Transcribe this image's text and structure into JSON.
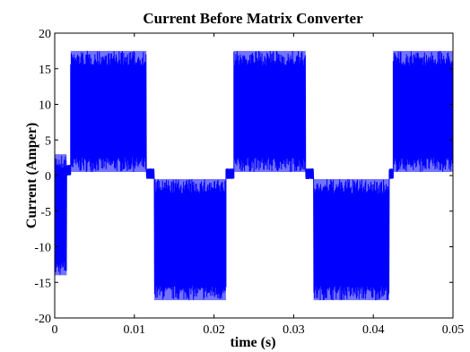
{
  "chart_data": {
    "type": "line",
    "title": "Current Before Matrix Converter",
    "xlabel": "time (s)",
    "ylabel": "Current (Amper)",
    "xlim": [
      0,
      0.05
    ],
    "ylim": [
      -20,
      20
    ],
    "x_ticks": [
      0,
      0.01,
      0.02,
      0.03,
      0.04,
      0.05
    ],
    "x_tick_labels": [
      "0",
      "0.01",
      "0.02",
      "0.03",
      "0.04",
      "0.05"
    ],
    "y_ticks": [
      -20,
      -15,
      -10,
      -5,
      0,
      5,
      10,
      15,
      20
    ],
    "y_tick_labels": [
      "-20",
      "-15",
      "-10",
      "-5",
      "0",
      "5",
      "10",
      "15",
      "20"
    ],
    "grid": false,
    "series": [
      {
        "color": "#0000ff",
        "segments": [
          {
            "x_start": 0.0,
            "x_end": 0.0015,
            "low": -14,
            "high": 3
          },
          {
            "x_start": 0.0015,
            "x_end": 0.002,
            "low": 0,
            "high": 1.5
          },
          {
            "x_start": 0.002,
            "x_end": 0.0115,
            "low": 0.5,
            "high": 17.5
          },
          {
            "x_start": 0.0115,
            "x_end": 0.0125,
            "low": -0.5,
            "high": 1
          },
          {
            "x_start": 0.0125,
            "x_end": 0.0215,
            "low": -17.5,
            "high": -0.5
          },
          {
            "x_start": 0.0215,
            "x_end": 0.0225,
            "low": -0.5,
            "high": 1
          },
          {
            "x_start": 0.0225,
            "x_end": 0.0315,
            "low": 0.5,
            "high": 17.5
          },
          {
            "x_start": 0.0315,
            "x_end": 0.0325,
            "low": -0.5,
            "high": 1
          },
          {
            "x_start": 0.0325,
            "x_end": 0.042,
            "low": -17.5,
            "high": -0.5
          },
          {
            "x_start": 0.042,
            "x_end": 0.0425,
            "low": -0.5,
            "high": 1
          },
          {
            "x_start": 0.0425,
            "x_end": 0.05,
            "low": 0.5,
            "high": 17.5
          }
        ]
      }
    ]
  }
}
